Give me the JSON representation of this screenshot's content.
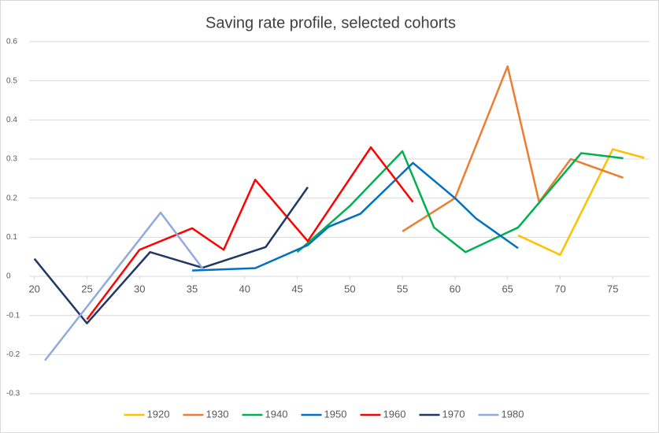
{
  "chart_data": {
    "type": "line",
    "title": "Saving rate profile, selected cohorts",
    "xlim": [
      19.5,
      78.5
    ],
    "xticks": [
      20,
      25,
      30,
      35,
      40,
      45,
      50,
      55,
      60,
      65,
      70,
      75
    ],
    "ylim": [
      -0.33,
      0.62
    ],
    "yticks": [
      0.6,
      0.5,
      0.4,
      0.3,
      0.2,
      0.1,
      0,
      -0.1,
      -0.2,
      -0.3
    ],
    "grid": true,
    "legend": "bottom",
    "series": [
      {
        "name": "1920",
        "color": "#FFC000",
        "x": [
          66,
          70,
          75,
          78
        ],
        "values": [
          0.105,
          0.055,
          0.325,
          0.303
        ]
      },
      {
        "name": "1930",
        "color": "#ED7D31",
        "x": [
          55,
          60,
          65,
          68,
          71,
          76
        ],
        "values": [
          0.115,
          0.2,
          0.537,
          0.19,
          0.3,
          0.252
        ]
      },
      {
        "name": "1940",
        "color": "#00B050",
        "x": [
          45,
          50,
          55,
          58,
          61,
          66,
          72,
          76
        ],
        "values": [
          0.062,
          0.18,
          0.32,
          0.125,
          0.062,
          0.125,
          0.315,
          0.302
        ]
      },
      {
        "name": "1950",
        "color": "#0070C0",
        "x": [
          35,
          41,
          46,
          48,
          51,
          56,
          60,
          62,
          66
        ],
        "values": [
          0.015,
          0.021,
          0.08,
          0.127,
          0.16,
          0.29,
          0.2,
          0.148,
          0.072
        ]
      },
      {
        "name": "1960",
        "color": "#FF0000",
        "x": [
          25,
          30,
          35,
          38,
          41,
          46,
          52,
          56
        ],
        "values": [
          -0.11,
          0.068,
          0.123,
          0.068,
          0.247,
          0.09,
          0.33,
          0.19
        ]
      },
      {
        "name": "1970",
        "color": "#203864",
        "x": [
          20,
          25,
          31,
          36,
          42,
          46
        ],
        "values": [
          0.045,
          -0.12,
          0.062,
          0.022,
          0.075,
          0.228
        ]
      },
      {
        "name": "1980",
        "color": "#8FAADC",
        "x": [
          21,
          32,
          36
        ],
        "values": [
          -0.215,
          0.163,
          0.02
        ]
      }
    ]
  }
}
